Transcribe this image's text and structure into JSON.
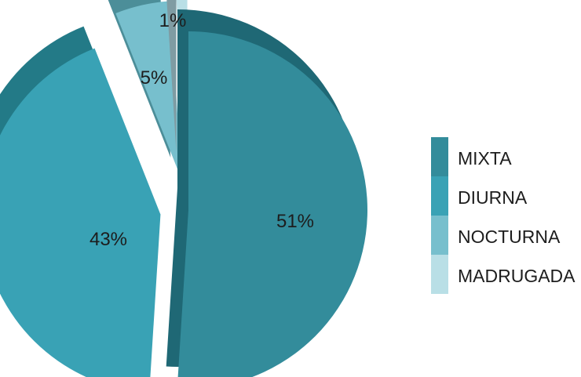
{
  "chart_data": {
    "type": "pie",
    "title": "",
    "categories": [
      "MIXTA",
      "DIURNA",
      "NOCTURNA",
      "MADRUGADA"
    ],
    "values": [
      51,
      43,
      5,
      1
    ],
    "labels": [
      "51%",
      "43%",
      "5%",
      "1%"
    ],
    "colors": {
      "MIXTA": "#338c9b",
      "DIURNA": "#39a2b5",
      "NOCTURNA": "#77bfcd",
      "MADRUGADA": "#b9dfe6"
    },
    "side_colors": {
      "MIXTA": "#1f6875",
      "DIURNA": "#237a87",
      "NOCTURNA": "#4c8e99",
      "MADRUGADA": "#7f9ca3"
    },
    "legend": {
      "position": "right",
      "entries": [
        "MIXTA",
        "DIURNA",
        "NOCTURNA",
        "MADRUGADA"
      ]
    },
    "style": "3d-exploded"
  }
}
